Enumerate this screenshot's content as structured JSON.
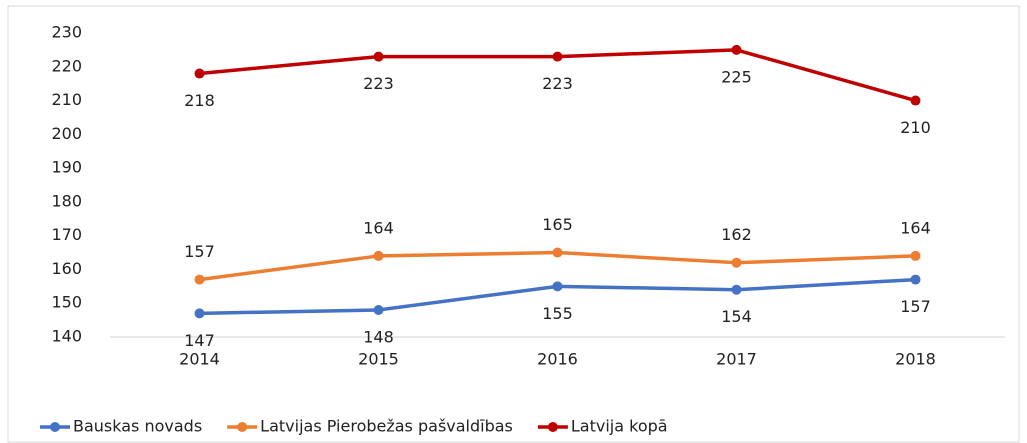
{
  "chart_data": {
    "type": "line",
    "categories": [
      "2014",
      "2015",
      "2016",
      "2017",
      "2018"
    ],
    "series": [
      {
        "name": "Bauskas novads",
        "color": "#4472c4",
        "label_position": "below",
        "values": [
          147,
          148,
          155,
          154,
          157
        ]
      },
      {
        "name": "Latvijas Pierobežas pašvaldības",
        "color": "#ed7d31",
        "label_position": "above",
        "values": [
          157,
          164,
          165,
          162,
          164
        ]
      },
      {
        "name": "Latvija kopā",
        "color": "#c00000",
        "label_position": "below",
        "values": [
          218,
          223,
          223,
          225,
          210
        ]
      }
    ],
    "ylim": [
      140,
      230
    ],
    "yticks": [
      140,
      150,
      160,
      170,
      180,
      190,
      200,
      210,
      220,
      230
    ],
    "grid": false,
    "legend": "bottom"
  }
}
